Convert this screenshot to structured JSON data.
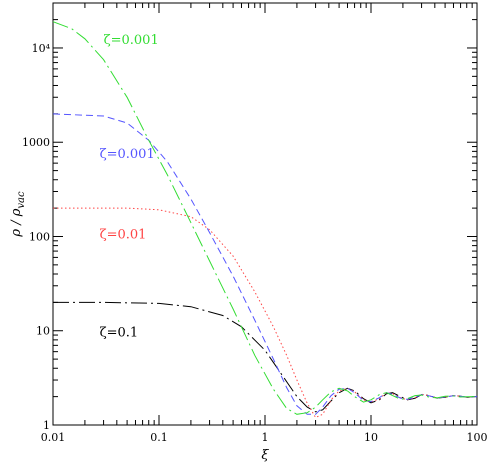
{
  "chart_data": {
    "type": "line",
    "title": "",
    "xlabel": "ξ",
    "ylabel": "ρ / ρ_vac",
    "ylabel_parts": {
      "main": "ρ / ρ",
      "sub": "vac"
    },
    "xscale": "log",
    "yscale": "log",
    "xlim": [
      0.01,
      100
    ],
    "ylim": [
      1,
      30000
    ],
    "x_ticks": [
      {
        "value": 0.01,
        "label": "0.01"
      },
      {
        "value": 0.1,
        "label": "0.1"
      },
      {
        "value": 1,
        "label": "1"
      },
      {
        "value": 10,
        "label": "10"
      },
      {
        "value": 100,
        "label": "100"
      }
    ],
    "y_ticks": [
      {
        "value": 1,
        "label": "1"
      },
      {
        "value": 10,
        "label": "10"
      },
      {
        "value": 100,
        "label": "100"
      },
      {
        "value": 1000,
        "label": "1000"
      },
      {
        "value": 10000,
        "label": "10⁴"
      }
    ],
    "grid": false,
    "legend": "none",
    "asymptote": 2,
    "series": [
      {
        "name": "ζ=0.1",
        "color": "#000000",
        "dash": "long-dash-dot",
        "label_position": "left",
        "points": [
          [
            0.01,
            20
          ],
          [
            0.03,
            20
          ],
          [
            0.1,
            19.5
          ],
          [
            0.2,
            18
          ],
          [
            0.4,
            14.5
          ],
          [
            0.6,
            11
          ],
          [
            1,
            6.2
          ],
          [
            1.5,
            3.2
          ],
          [
            2,
            2.0
          ],
          [
            2.5,
            1.55
          ],
          [
            3,
            1.38
          ],
          [
            3.5,
            1.45
          ],
          [
            4.2,
            1.8
          ],
          [
            5,
            2.2
          ],
          [
            6,
            2.45
          ],
          [
            7,
            2.3
          ],
          [
            8.5,
            1.9
          ],
          [
            10,
            1.72
          ],
          [
            12,
            1.85
          ],
          [
            14,
            2.15
          ],
          [
            16,
            2.2
          ],
          [
            19,
            2.0
          ],
          [
            22,
            1.85
          ],
          [
            26,
            1.92
          ],
          [
            30,
            2.1
          ],
          [
            35,
            2.06
          ],
          [
            42,
            1.93
          ],
          [
            50,
            1.97
          ],
          [
            60,
            2.05
          ],
          [
            70,
            2.02
          ],
          [
            80,
            1.97
          ],
          [
            100,
            2.0
          ]
        ]
      },
      {
        "name": "ζ=0.01",
        "color": "#ff4444",
        "dash": "dotted",
        "label_position": "left",
        "points": [
          [
            0.01,
            200
          ],
          [
            0.05,
            200
          ],
          [
            0.1,
            192
          ],
          [
            0.2,
            162
          ],
          [
            0.3,
            118
          ],
          [
            0.5,
            62
          ],
          [
            0.8,
            26
          ],
          [
            1.2,
            11
          ],
          [
            1.6,
            5.5
          ],
          [
            2,
            3
          ],
          [
            2.5,
            1.7
          ],
          [
            3,
            1.2
          ],
          [
            3.5,
            1.3
          ],
          [
            4.2,
            1.85
          ],
          [
            5,
            2.3
          ],
          [
            6,
            2.45
          ],
          [
            7,
            2.25
          ],
          [
            8.5,
            1.85
          ],
          [
            10,
            1.75
          ],
          [
            12,
            1.9
          ],
          [
            14,
            2.2
          ],
          [
            16,
            2.15
          ],
          [
            19,
            1.95
          ],
          [
            22,
            1.85
          ],
          [
            26,
            1.95
          ],
          [
            30,
            2.12
          ],
          [
            35,
            2.05
          ],
          [
            42,
            1.93
          ],
          [
            50,
            1.98
          ],
          [
            60,
            2.05
          ],
          [
            70,
            2.02
          ],
          [
            80,
            1.97
          ],
          [
            100,
            2.0
          ]
        ]
      },
      {
        "name": "ζ=0.001",
        "color": "#5555ff",
        "dash": "dashed",
        "label_position": "left",
        "points": [
          [
            0.01,
            2000
          ],
          [
            0.03,
            1900
          ],
          [
            0.05,
            1600
          ],
          [
            0.08,
            1050
          ],
          [
            0.12,
            620
          ],
          [
            0.2,
            250
          ],
          [
            0.3,
            110
          ],
          [
            0.5,
            38
          ],
          [
            0.8,
            13
          ],
          [
            1.2,
            5
          ],
          [
            1.6,
            2.5
          ],
          [
            2,
            1.6
          ],
          [
            2.5,
            1.3
          ],
          [
            3,
            1.3
          ],
          [
            3.5,
            1.55
          ],
          [
            4.2,
            2.05
          ],
          [
            5,
            2.4
          ],
          [
            6,
            2.45
          ],
          [
            7,
            2.2
          ],
          [
            8.5,
            1.82
          ],
          [
            10,
            1.77
          ],
          [
            12,
            1.95
          ],
          [
            14,
            2.2
          ],
          [
            16,
            2.12
          ],
          [
            19,
            1.93
          ],
          [
            22,
            1.87
          ],
          [
            26,
            1.97
          ],
          [
            30,
            2.1
          ],
          [
            35,
            2.04
          ],
          [
            42,
            1.94
          ],
          [
            50,
            1.98
          ],
          [
            60,
            2.04
          ],
          [
            70,
            2.02
          ],
          [
            80,
            1.98
          ],
          [
            100,
            2.0
          ]
        ]
      },
      {
        "name": "ζ=0.001",
        "color": "#33dd33",
        "dash": "long-dash-dot",
        "label_position": "top",
        "points": [
          [
            0.01,
            19000
          ],
          [
            0.015,
            16000
          ],
          [
            0.02,
            12500
          ],
          [
            0.03,
            7500
          ],
          [
            0.05,
            3000
          ],
          [
            0.08,
            1050
          ],
          [
            0.12,
            450
          ],
          [
            0.2,
            140
          ],
          [
            0.3,
            55
          ],
          [
            0.5,
            17
          ],
          [
            0.8,
            5.5
          ],
          [
            1.2,
            2.4
          ],
          [
            1.6,
            1.5
          ],
          [
            2,
            1.3
          ],
          [
            2.5,
            1.35
          ],
          [
            3,
            1.55
          ],
          [
            3.5,
            1.85
          ],
          [
            4.2,
            2.25
          ],
          [
            5,
            2.45
          ],
          [
            6,
            2.3
          ],
          [
            7,
            2.0
          ],
          [
            8.5,
            1.75
          ],
          [
            10,
            1.85
          ],
          [
            12,
            2.1
          ],
          [
            14,
            2.2
          ],
          [
            16,
            2.05
          ],
          [
            19,
            1.88
          ],
          [
            22,
            1.9
          ],
          [
            26,
            2.05
          ],
          [
            30,
            2.08
          ],
          [
            35,
            1.98
          ],
          [
            42,
            1.94
          ],
          [
            50,
            2.02
          ],
          [
            60,
            2.03
          ],
          [
            70,
            1.98
          ],
          [
            80,
            1.99
          ],
          [
            100,
            2.0
          ]
        ]
      }
    ],
    "annotations": [
      {
        "text": "ζ=0.001",
        "color": "#33dd33",
        "x": 0.03,
        "y": 11000
      },
      {
        "text": "ζ=0.001",
        "color": "#5555ff",
        "x": 0.0275,
        "y": 680
      },
      {
        "text": "ζ=0.01",
        "color": "#ff4444",
        "x": 0.0275,
        "y": 95
      },
      {
        "text": "ζ=0.1",
        "color": "#000000",
        "x": 0.0275,
        "y": 8.7
      }
    ]
  }
}
